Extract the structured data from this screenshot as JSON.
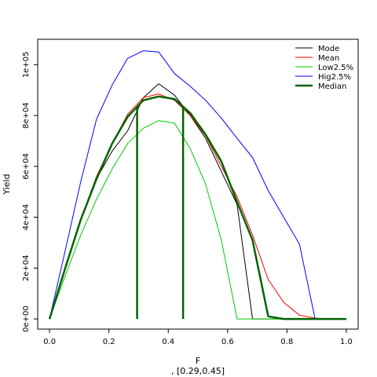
{
  "chart_data": {
    "type": "line",
    "xlabel": "F",
    "ylabel": "Yield",
    "subtitle": ", [0.29,0.45]",
    "xlim": [
      -0.04,
      1.04
    ],
    "ylim": [
      -4000,
      110000
    ],
    "x_ticks": [
      0,
      0.2,
      0.4,
      0.6,
      0.8,
      1.0
    ],
    "x_tick_labels": [
      "0.0",
      "0.2",
      "0.4",
      "0.6",
      "0.8",
      "1.0"
    ],
    "y_ticks": [
      0,
      20000,
      40000,
      60000,
      80000,
      100000
    ],
    "y_tick_labels": [
      "0e+00",
      "2e+04",
      "4e+04",
      "6e+04",
      "8e+04",
      "1e+05"
    ],
    "grid": false,
    "legend_position": "top-right",
    "series": [
      {
        "name": "Mode",
        "color": "#000000",
        "line_width": 1,
        "x": [
          0,
          0.053,
          0.105,
          0.158,
          0.211,
          0.263,
          0.316,
          0.368,
          0.421,
          0.474,
          0.526,
          0.579,
          0.632,
          0.684,
          0.737,
          0.789,
          0.842,
          0.895,
          0.947,
          1.0
        ],
        "y": [
          0,
          20000,
          39000,
          55000,
          66000,
          74000,
          87000,
          92500,
          88000,
          80000,
          71000,
          58000,
          45000,
          0,
          0,
          0,
          0,
          0,
          0,
          0
        ]
      },
      {
        "name": "Mean",
        "color": "#ff0000",
        "line_width": 1,
        "x": [
          0,
          0.053,
          0.105,
          0.158,
          0.211,
          0.263,
          0.316,
          0.368,
          0.421,
          0.474,
          0.526,
          0.579,
          0.632,
          0.684,
          0.737,
          0.789,
          0.842,
          0.895,
          0.947,
          1.0
        ],
        "y": [
          0,
          20000,
          39000,
          56000,
          69000,
          80500,
          87000,
          88500,
          86000,
          80000,
          72000,
          60000,
          48000,
          33000,
          15500,
          6500,
          1500,
          300,
          0,
          0
        ]
      },
      {
        "name": "Low2.5%",
        "color": "#00cc00",
        "line_width": 1,
        "x": [
          0,
          0.053,
          0.105,
          0.158,
          0.211,
          0.263,
          0.316,
          0.368,
          0.421,
          0.474,
          0.526,
          0.579,
          0.632,
          0.684,
          0.737,
          0.789,
          0.842,
          0.895,
          0.947,
          1.0
        ],
        "y": [
          0,
          17000,
          33000,
          47000,
          59000,
          69000,
          75000,
          78000,
          77000,
          67000,
          53000,
          31000,
          0,
          0,
          0,
          0,
          0,
          0,
          0,
          0
        ]
      },
      {
        "name": "Hig2.5%",
        "color": "#0000ff",
        "line_width": 1,
        "x": [
          0,
          0.053,
          0.105,
          0.158,
          0.211,
          0.263,
          0.316,
          0.368,
          0.421,
          0.474,
          0.526,
          0.579,
          0.632,
          0.684,
          0.737,
          0.789,
          0.842,
          0.895,
          0.947,
          1.0
        ],
        "y": [
          0,
          27000,
          54000,
          78500,
          92000,
          102500,
          105500,
          105000,
          96500,
          91500,
          86000,
          79000,
          71000,
          63500,
          50500,
          40000,
          29500,
          0,
          0,
          0
        ]
      },
      {
        "name": "Median",
        "color": "#006400",
        "line_width": 2.5,
        "x": [
          0,
          0.053,
          0.105,
          0.158,
          0.211,
          0.263,
          0.316,
          0.368,
          0.421,
          0.474,
          0.526,
          0.579,
          0.632,
          0.684,
          0.737,
          0.789,
          0.842,
          0.895,
          0.947,
          1.0
        ],
        "y": [
          0,
          20000,
          39000,
          55000,
          69000,
          79500,
          86000,
          87500,
          86500,
          81000,
          72500,
          62000,
          46000,
          31000,
          1000,
          0,
          0,
          0,
          0,
          0
        ]
      }
    ],
    "vertical_lines": [
      {
        "x": 0.295,
        "y_top": 83500,
        "color": "#006400"
      },
      {
        "x": 0.45,
        "y_top": 83500,
        "color": "#006400"
      }
    ]
  }
}
